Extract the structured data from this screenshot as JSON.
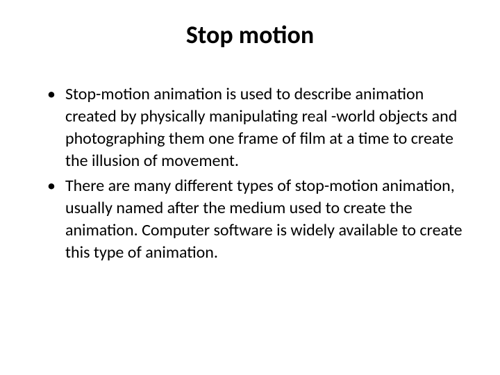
{
  "slide": {
    "title": "Stop motion",
    "bullets": [
      {
        "text": "Stop-motion animation is used to describe animation created by physically manipulating real -world objects and photographing them one frame of film at a time to create the illusion of movement."
      },
      {
        "text": "There are many different types of stop-motion animation, usually named after the medium used to create the animation. Computer software is widely available to create this type of animation."
      }
    ],
    "title_fontsize": 36,
    "body_fontsize": 24,
    "line_height": 32,
    "background_color": "#ffffff",
    "text_color": "#000000",
    "font_family": "Calibri"
  }
}
